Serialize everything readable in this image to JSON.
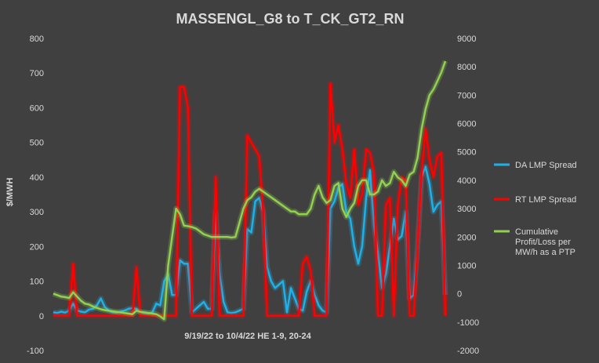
{
  "chart_data": {
    "type": "line",
    "title": "MASSENGL_G8 to T_CK_GT2_RN",
    "xlabel": "9/19/22 to 10/4/22 HE 1-9, 20-24",
    "ylabel": "$/MWH",
    "ylim_left": [
      -100,
      800
    ],
    "yticks_left": [
      "-100",
      "0",
      "100",
      "200",
      "300",
      "400",
      "500",
      "600",
      "700",
      "800"
    ],
    "ylim_right": [
      -2000,
      9000
    ],
    "yticks_right": [
      "-2000",
      "-1000",
      "0",
      "1000",
      "2000",
      "3000",
      "4000",
      "5000",
      "6000",
      "7000",
      "8000",
      "9000"
    ],
    "x_count": 100,
    "grid": false,
    "legend_position": "right",
    "colors": {
      "background": "#404040",
      "da": "#1fb1e6",
      "rt": "#ff0000",
      "cum": "#92d050",
      "text": "#d9d9d9"
    },
    "series": [
      {
        "name": "DA LMP Spread",
        "axis": "left",
        "color": "#1fb1e6",
        "values": [
          10,
          8,
          12,
          9,
          15,
          35,
          15,
          12,
          10,
          18,
          20,
          30,
          50,
          25,
          15,
          10,
          8,
          12,
          15,
          20,
          22,
          20,
          10,
          8,
          6,
          10,
          35,
          30,
          100,
          120,
          60,
          60,
          160,
          150,
          150,
          10,
          20,
          30,
          40,
          20,
          20,
          300,
          120,
          40,
          10,
          8,
          10,
          15,
          20,
          250,
          240,
          330,
          340,
          300,
          140,
          100,
          80,
          90,
          100,
          10,
          80,
          50,
          20,
          15,
          70,
          100,
          60,
          30,
          15,
          10,
          310,
          330,
          370,
          380,
          300,
          280,
          200,
          150,
          200,
          340,
          420,
          260,
          180,
          80,
          120,
          200,
          280,
          220,
          230,
          300,
          50,
          60,
          200,
          400,
          430,
          380,
          300,
          320,
          330,
          60
        ]
      },
      {
        "name": "RT LMP Spread",
        "axis": "left",
        "color": "#ff0000",
        "values": [
          0,
          0,
          0,
          0,
          0,
          150,
          0,
          0,
          0,
          0,
          0,
          0,
          0,
          0,
          0,
          0,
          0,
          0,
          0,
          0,
          0,
          140,
          0,
          0,
          0,
          0,
          0,
          0,
          0,
          0,
          0,
          0,
          660,
          660,
          600,
          0,
          0,
          0,
          0,
          0,
          0,
          400,
          0,
          0,
          0,
          0,
          0,
          0,
          0,
          520,
          500,
          480,
          460,
          300,
          0,
          0,
          0,
          0,
          0,
          0,
          0,
          0,
          0,
          150,
          170,
          130,
          0,
          0,
          0,
          0,
          670,
          500,
          550,
          480,
          380,
          340,
          480,
          320,
          350,
          480,
          470,
          410,
          0,
          0,
          320,
          340,
          0,
          320,
          400,
          390,
          0,
          0,
          200,
          410,
          540,
          450,
          400,
          460,
          470,
          0
        ]
      },
      {
        "name": "Cumulative Profit/Loss per MW/h as a PTP",
        "axis": "right",
        "color": "#92d050",
        "values": [
          0,
          -50,
          -100,
          -120,
          -150,
          50,
          -100,
          -250,
          -350,
          -380,
          -450,
          -500,
          -550,
          -580,
          -600,
          -620,
          -640,
          -660,
          -680,
          -700,
          -720,
          -600,
          -640,
          -660,
          -680,
          -700,
          -720,
          -800,
          -900,
          1000,
          2000,
          3000,
          2800,
          2400,
          2380,
          2350,
          2300,
          2200,
          2100,
          2050,
          2000,
          2000,
          2000,
          2000,
          2000,
          1980,
          2000,
          2500,
          3000,
          3300,
          3400,
          3600,
          3700,
          3600,
          3500,
          3400,
          3300,
          3200,
          3100,
          3000,
          2900,
          2900,
          2800,
          2800,
          2800,
          3000,
          3500,
          3800,
          3400,
          3200,
          3300,
          3800,
          3900,
          3000,
          2700,
          3000,
          3200,
          3800,
          4000,
          4000,
          3500,
          3500,
          3600,
          4000,
          3800,
          3900,
          4300,
          4100,
          4000,
          3800,
          4200,
          4300,
          4800,
          5800,
          6500,
          7000,
          7200,
          7500,
          7800,
          8200
        ]
      }
    ]
  }
}
